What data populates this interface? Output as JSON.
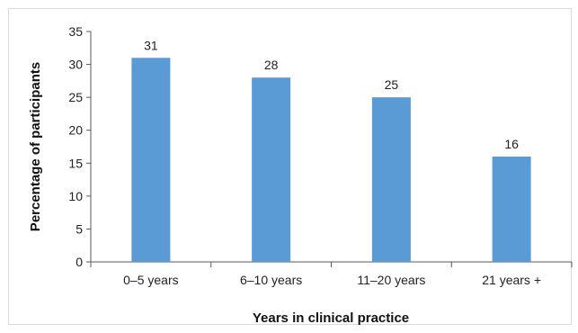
{
  "chart_data": {
    "type": "bar",
    "title": "",
    "xlabel": "Years in clinical practice",
    "ylabel": "Percentage of participants",
    "categories": [
      "0–5 years",
      "6–10 years",
      "11–20 years",
      "21 years +"
    ],
    "values": [
      31,
      28,
      25,
      16
    ],
    "data_labels": [
      "31",
      "28",
      "25",
      "16"
    ],
    "ylim": [
      0,
      35
    ],
    "yticks": [
      0,
      5,
      10,
      15,
      20,
      25,
      30,
      35
    ],
    "grid": false,
    "legend": "none",
    "bar_color": "#5b9bd5"
  }
}
